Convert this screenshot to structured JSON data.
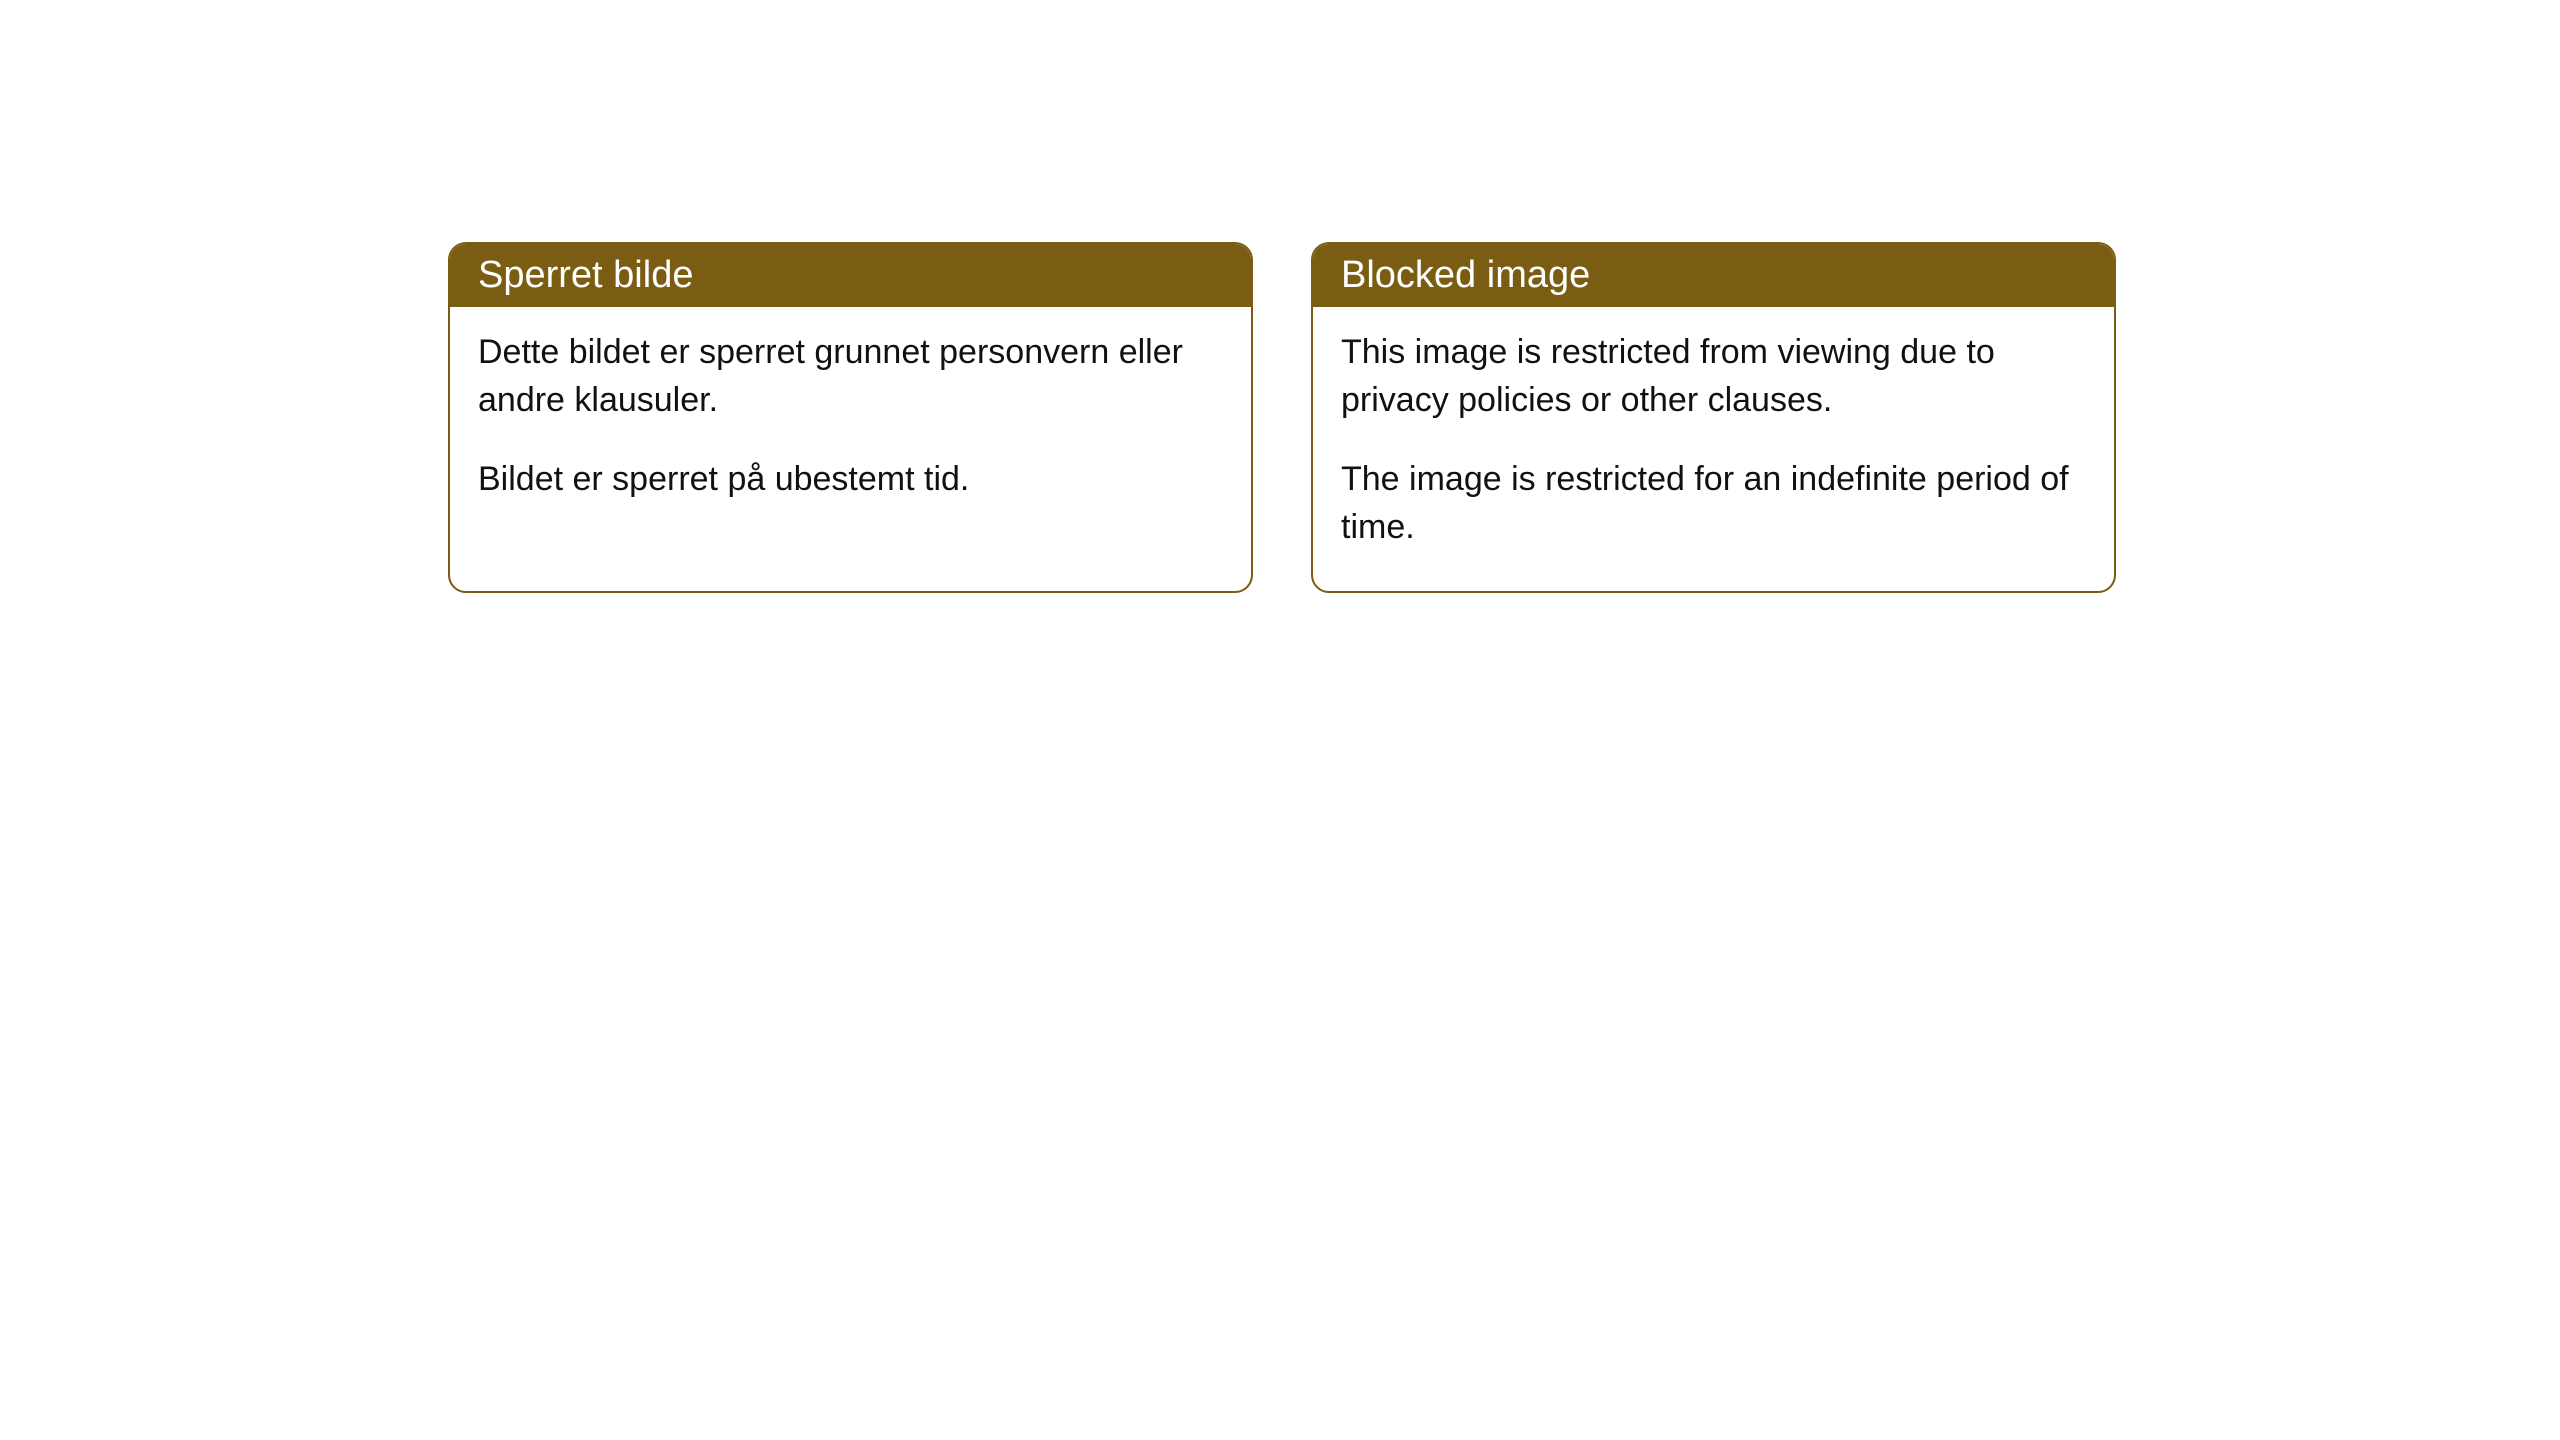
{
  "cards": [
    {
      "title": "Sperret bilde",
      "paragraph1": "Dette bildet er sperret grunnet personvern eller andre klausuler.",
      "paragraph2": "Bildet er sperret på ubestemt tid."
    },
    {
      "title": "Blocked image",
      "paragraph1": "This image is restricted from viewing due to privacy policies or other clauses.",
      "paragraph2": "The image is restricted for an indefinite period of time."
    }
  ],
  "styling": {
    "header_background": "#7a5d13",
    "header_text_color": "#ffffff",
    "border_color": "#7a5d13",
    "body_background": "#ffffff",
    "body_text_color": "#111111",
    "border_radius": 18,
    "title_fontsize": 38,
    "body_fontsize": 34
  }
}
